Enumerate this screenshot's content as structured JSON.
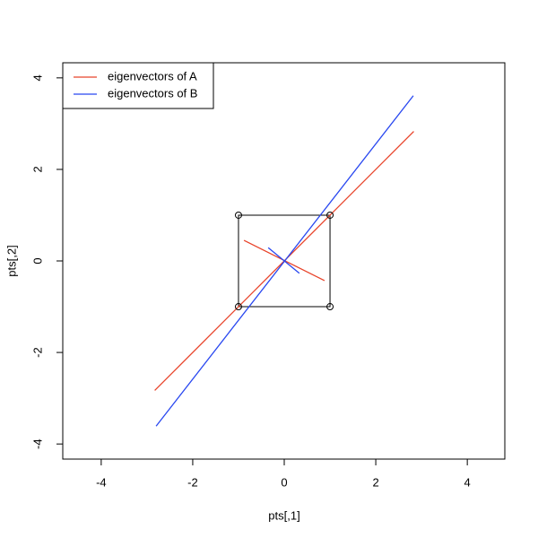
{
  "chart_data": {
    "type": "scatter",
    "xlabel": "pts[,1]",
    "ylabel": "pts[,2]",
    "x": [
      -1,
      1,
      1,
      -1
    ],
    "y": [
      1,
      1,
      -1,
      -1
    ],
    "xlim": [
      -4.84,
      4.82
    ],
    "ylim": [
      -4.33,
      4.33
    ],
    "xticks": [
      -4,
      -2,
      0,
      2,
      4
    ],
    "yticks": [
      -4,
      -2,
      0,
      2,
      4
    ],
    "legend": "top-left",
    "series": [
      {
        "name": "eigenvectors of A",
        "color": "#e8432a",
        "segments": [
          {
            "x": [
              -2.83,
              2.83
            ],
            "y": [
              -2.83,
              2.83
            ]
          },
          {
            "x": [
              -0.88,
              0.88
            ],
            "y": [
              0.45,
              -0.43
            ]
          }
        ]
      },
      {
        "name": "eigenvectors of B",
        "color": "#2847f0",
        "segments": [
          {
            "x": [
              -2.8,
              2.82
            ],
            "y": [
              -3.61,
              3.61
            ]
          },
          {
            "x": [
              -0.35,
              0.33
            ],
            "y": [
              0.29,
              -0.27
            ]
          }
        ]
      }
    ]
  }
}
